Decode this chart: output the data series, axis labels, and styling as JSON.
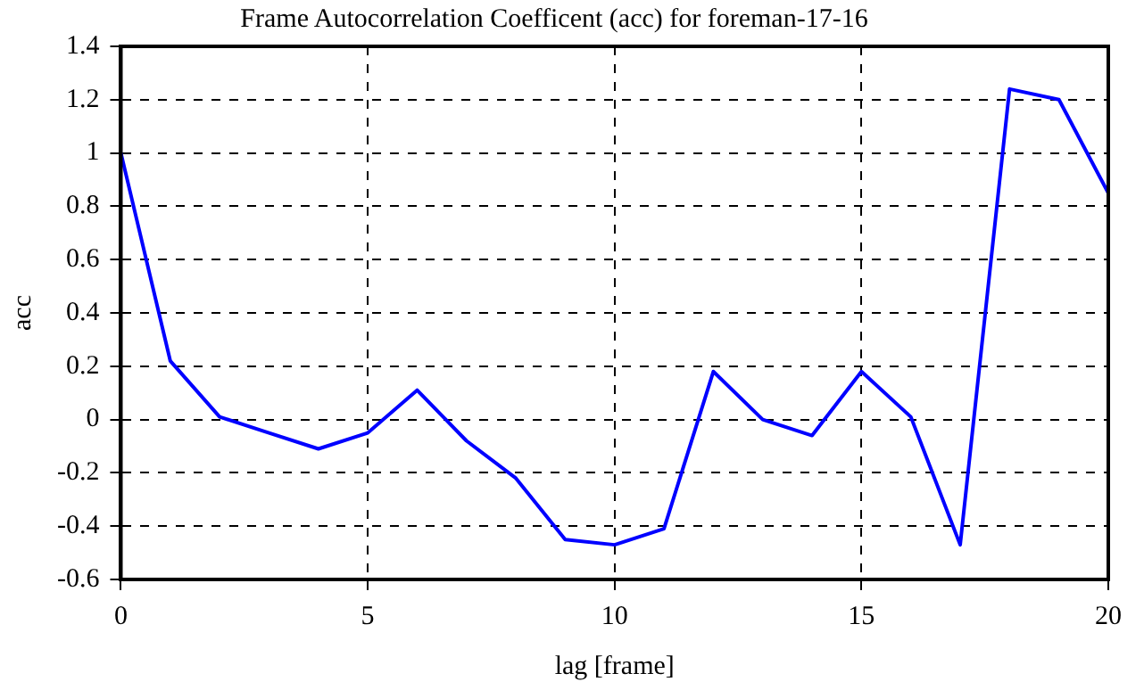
{
  "chart_data": {
    "type": "line",
    "title": "Frame Autocorrelation Coefficent (acc) for foreman-17-16",
    "xlabel": "lag [frame]",
    "ylabel": "acc",
    "x": [
      0,
      1,
      2,
      3,
      4,
      5,
      6,
      7,
      8,
      9,
      10,
      11,
      12,
      13,
      14,
      15,
      16,
      17,
      18,
      19,
      20
    ],
    "series": [
      {
        "color": "#0000ff",
        "values": [
          1.0,
          0.22,
          0.01,
          -0.05,
          -0.11,
          -0.05,
          0.11,
          -0.08,
          -0.22,
          -0.45,
          -0.47,
          -0.41,
          0.18,
          0.0,
          -0.06,
          0.18,
          0.01,
          -0.47,
          1.24,
          1.2,
          0.85
        ]
      }
    ],
    "xlim": [
      0,
      20
    ],
    "xticks": [
      0,
      5,
      10,
      15,
      20
    ],
    "ylim": [
      -0.6,
      1.4
    ],
    "yticks": [
      -0.6,
      -0.4,
      -0.2,
      0,
      0.2,
      0.4,
      0.6,
      0.8,
      1,
      1.2,
      1.4
    ],
    "grid": true,
    "legend": false,
    "marker": "none",
    "line_style": "solid"
  }
}
